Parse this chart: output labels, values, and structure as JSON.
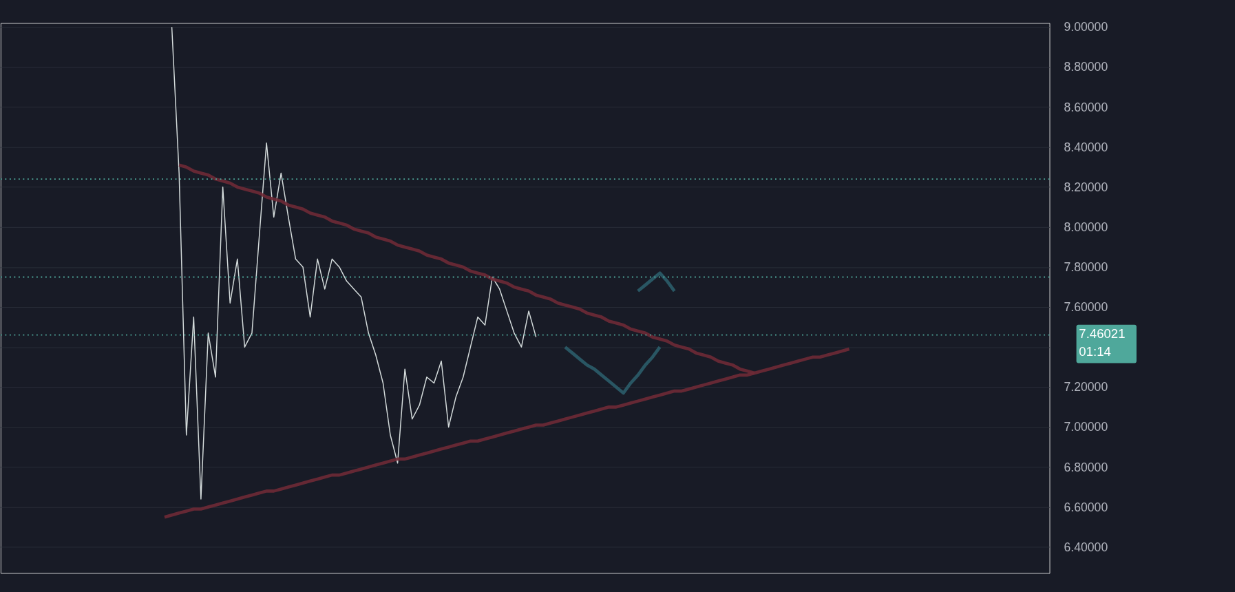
{
  "chart_data": {
    "type": "line",
    "categories": [
      null,
      null,
      null,
      null,
      null,
      null,
      null,
      null,
      null,
      null,
      null,
      null,
      null,
      null,
      null,
      null,
      null,
      null,
      null,
      null,
      null,
      null,
      null,
      null,
      null,
      null,
      null,
      null,
      null,
      null,
      null,
      null,
      null,
      null,
      null,
      null,
      null,
      null,
      null,
      null,
      null,
      null,
      null,
      null,
      null,
      null,
      null,
      null,
      null,
      null,
      null,
      null,
      null,
      null,
      null,
      null,
      null,
      null,
      null,
      null,
      null,
      null,
      null,
      null,
      null,
      null,
      null,
      null,
      null,
      null,
      null,
      null,
      null,
      null,
      null,
      null,
      null,
      null,
      null,
      null,
      null,
      null,
      null,
      null,
      null,
      null,
      null,
      null,
      null,
      null,
      null,
      null,
      null,
      null,
      null,
      null,
      null,
      null,
      null,
      null,
      null,
      null,
      null,
      null,
      null,
      null,
      null,
      null,
      null,
      null,
      null,
      null,
      null,
      null,
      null,
      null,
      null,
      null,
      null,
      null,
      null,
      null,
      null,
      null,
      null,
      null,
      null,
      null,
      null,
      null,
      null,
      null,
      null,
      null,
      null,
      null,
      null,
      null,
      null,
      null,
      null,
      null,
      null,
      null
    ],
    "ylim": [
      6.27,
      9.02
    ],
    "yticks": [
      {
        "value": 6.4,
        "label": "6.40000"
      },
      {
        "value": 6.6,
        "label": "6.60000"
      },
      {
        "value": 6.8,
        "label": "6.80000"
      },
      {
        "value": 7.0,
        "label": "7.00000"
      },
      {
        "value": 7.2,
        "label": "7.20000"
      },
      {
        "value": 7.4,
        "label": null
      },
      {
        "value": 7.6,
        "label": "7.60000"
      },
      {
        "value": 7.8,
        "label": "7.80000"
      },
      {
        "value": 8.0,
        "label": "8.00000"
      },
      {
        "value": 8.2,
        "label": "8.20000"
      },
      {
        "value": 8.4,
        "label": "8.40000"
      },
      {
        "value": 8.6,
        "label": "8.60000"
      },
      {
        "value": 8.8,
        "label": "8.80000"
      },
      {
        "value": 9.0,
        "label": "9.00000"
      }
    ],
    "tick_labels": "y",
    "grid": "y",
    "line_style": "solid",
    "series": [
      {
        "color": "#e8f0ee",
        "values": [
          null,
          null,
          null,
          null,
          null,
          null,
          null,
          null,
          null,
          null,
          null,
          null,
          null,
          null,
          null,
          null,
          null,
          null,
          null,
          null,
          null,
          null,
          null,
          9.0,
          8.27,
          6.96,
          7.55,
          6.64,
          7.47,
          7.25,
          8.2,
          7.62,
          7.84,
          7.4,
          7.47,
          7.95,
          8.42,
          8.05,
          8.27,
          8.05,
          7.84,
          7.8,
          7.55,
          7.84,
          7.69,
          7.84,
          7.8,
          7.73,
          7.69,
          7.65,
          7.47,
          7.36,
          7.22,
          6.96,
          6.82,
          7.29,
          7.04,
          7.11,
          7.25,
          7.22,
          7.33,
          7.0,
          7.15,
          7.25,
          7.4,
          7.55,
          7.51,
          7.75,
          7.69,
          7.58,
          7.47,
          7.4,
          7.58,
          7.45,
          null,
          null,
          null,
          null,
          null,
          null,
          null,
          null,
          null,
          null,
          null,
          null,
          null,
          null,
          null,
          null,
          null,
          null,
          null,
          null,
          null,
          null,
          null,
          null,
          null,
          null,
          null,
          null,
          null,
          null,
          null,
          null,
          null,
          null,
          null,
          null,
          null,
          null,
          null,
          null,
          null,
          null,
          null,
          null,
          null,
          null,
          null,
          null,
          null,
          null,
          null,
          null,
          null,
          null,
          null,
          null,
          null,
          null,
          null,
          null,
          null,
          null,
          null,
          null,
          null,
          null,
          null,
          null,
          null,
          null
        ]
      },
      {
        "color": "#6e2a36",
        "values": [
          null,
          null,
          null,
          null,
          null,
          null,
          null,
          null,
          null,
          null,
          null,
          null,
          null,
          null,
          null,
          null,
          null,
          null,
          null,
          null,
          null,
          null,
          null,
          null,
          8.31,
          8.3,
          8.28,
          8.27,
          8.26,
          8.24,
          8.23,
          8.22,
          8.2,
          8.19,
          8.18,
          8.17,
          8.15,
          8.14,
          8.13,
          8.11,
          8.1,
          8.09,
          8.07,
          8.06,
          8.05,
          8.03,
          8.02,
          8.01,
          7.99,
          7.98,
          7.97,
          7.95,
          7.94,
          7.93,
          7.91,
          7.9,
          7.89,
          7.88,
          7.86,
          7.85,
          7.84,
          7.82,
          7.81,
          7.8,
          7.78,
          7.77,
          7.76,
          7.74,
          7.73,
          7.72,
          7.7,
          7.69,
          7.68,
          7.66,
          7.65,
          7.64,
          7.62,
          7.61,
          7.6,
          7.59,
          7.57,
          7.56,
          7.55,
          7.53,
          7.52,
          7.51,
          7.49,
          7.48,
          7.47,
          7.45,
          7.44,
          7.43,
          7.41,
          7.4,
          7.39,
          7.37,
          7.36,
          7.35,
          7.33,
          7.32,
          7.31,
          7.29,
          7.28,
          7.27,
          null,
          null,
          null,
          null,
          null,
          null,
          null,
          null,
          null,
          null,
          null,
          null,
          null,
          null,
          null,
          null,
          null,
          null,
          null,
          null,
          null,
          null,
          null,
          null,
          null,
          null,
          null,
          null,
          null,
          null,
          null,
          null,
          null,
          null,
          null,
          null,
          null,
          null,
          null,
          null
        ]
      },
      {
        "color": "#6e2a36",
        "values": [
          null,
          null,
          null,
          null,
          null,
          null,
          null,
          null,
          null,
          null,
          null,
          null,
          null,
          null,
          null,
          null,
          null,
          null,
          null,
          null,
          null,
          null,
          6.55,
          6.56,
          6.57,
          6.58,
          6.59,
          6.59,
          6.6,
          6.61,
          6.62,
          6.63,
          6.64,
          6.65,
          6.66,
          6.67,
          6.68,
          6.68,
          6.69,
          6.7,
          6.71,
          6.72,
          6.73,
          6.74,
          6.75,
          6.76,
          6.76,
          6.77,
          6.78,
          6.79,
          6.8,
          6.81,
          6.82,
          6.83,
          6.84,
          6.84,
          6.85,
          6.86,
          6.87,
          6.88,
          6.89,
          6.9,
          6.91,
          6.92,
          6.93,
          6.93,
          6.94,
          6.95,
          6.96,
          6.97,
          6.98,
          6.99,
          7.0,
          7.01,
          7.01,
          7.02,
          7.03,
          7.04,
          7.05,
          7.06,
          7.07,
          7.08,
          7.09,
          7.1,
          7.1,
          7.11,
          7.12,
          7.13,
          7.14,
          7.15,
          7.16,
          7.17,
          7.18,
          7.18,
          7.19,
          7.2,
          7.21,
          7.22,
          7.23,
          7.24,
          7.25,
          7.26,
          7.26,
          7.27,
          7.28,
          7.29,
          7.3,
          7.31,
          7.32,
          7.33,
          7.34,
          7.35,
          7.35,
          7.36,
          7.37,
          7.38,
          7.39,
          null,
          null,
          null,
          null,
          null,
          null,
          null,
          null,
          null,
          null,
          null,
          null,
          null,
          null,
          null,
          null,
          null,
          null,
          null,
          null,
          null,
          null,
          null,
          null,
          null,
          null,
          null
        ]
      },
      {
        "color": "#2b5d6a",
        "values": [
          null,
          null,
          null,
          null,
          null,
          null,
          null,
          null,
          null,
          null,
          null,
          null,
          null,
          null,
          null,
          null,
          null,
          null,
          null,
          null,
          null,
          null,
          null,
          null,
          null,
          null,
          null,
          null,
          null,
          null,
          null,
          null,
          null,
          null,
          null,
          null,
          null,
          null,
          null,
          null,
          null,
          null,
          null,
          null,
          null,
          null,
          null,
          null,
          null,
          null,
          null,
          null,
          null,
          null,
          null,
          null,
          null,
          null,
          null,
          null,
          null,
          null,
          null,
          null,
          null,
          null,
          null,
          null,
          null,
          null,
          null,
          null,
          null,
          null,
          null,
          null,
          null,
          7.4,
          7.37,
          7.34,
          7.31,
          7.29,
          7.26,
          7.23,
          7.2,
          7.17,
          7.22,
          7.26,
          7.31,
          7.35,
          7.4,
          null,
          null,
          null,
          null,
          null,
          null,
          null,
          null,
          null,
          null,
          null,
          null,
          null,
          null,
          null,
          null,
          null,
          null,
          null,
          null,
          null,
          null,
          null,
          null,
          null,
          null,
          null,
          null,
          null,
          null,
          null,
          null,
          null,
          null,
          null,
          null,
          null,
          null,
          null,
          null,
          null,
          null,
          null,
          null,
          null,
          null,
          null,
          null,
          null,
          null,
          null,
          null,
          null
        ]
      },
      {
        "color": "#2b5d6a",
        "values": [
          null,
          null,
          null,
          null,
          null,
          null,
          null,
          null,
          null,
          null,
          null,
          null,
          null,
          null,
          null,
          null,
          null,
          null,
          null,
          null,
          null,
          null,
          null,
          null,
          null,
          null,
          null,
          null,
          null,
          null,
          null,
          null,
          null,
          null,
          null,
          null,
          null,
          null,
          null,
          null,
          null,
          null,
          null,
          null,
          null,
          null,
          null,
          null,
          null,
          null,
          null,
          null,
          null,
          null,
          null,
          null,
          null,
          null,
          null,
          null,
          null,
          null,
          null,
          null,
          null,
          null,
          null,
          null,
          null,
          null,
          null,
          null,
          null,
          null,
          null,
          null,
          null,
          null,
          null,
          null,
          null,
          null,
          null,
          null,
          null,
          null,
          null,
          7.68,
          7.71,
          7.74,
          7.77,
          7.73,
          7.68,
          null,
          null,
          null,
          null,
          null,
          null,
          null,
          null,
          null,
          null,
          null,
          null,
          null,
          null,
          null,
          null,
          null,
          null,
          null,
          null,
          null,
          null,
          null,
          null,
          null,
          null,
          null,
          null,
          null,
          null,
          null,
          null,
          null,
          null,
          null,
          null,
          null,
          null,
          null,
          null,
          null,
          null,
          null,
          null,
          null,
          null,
          null,
          null,
          null,
          null,
          null
        ]
      }
    ],
    "ref_lines": [
      {
        "axis": "y",
        "value": 8.24,
        "color": "#4fa89b",
        "line_style": "dotted"
      },
      {
        "axis": "y",
        "value": 7.75,
        "color": "#4fa89b",
        "line_style": "dotted"
      },
      {
        "axis": "y",
        "value": 7.46021,
        "color": "#4fa89b",
        "line_style": "dotted"
      }
    ],
    "annotations": [
      "7.46021",
      "01:14"
    ]
  }
}
